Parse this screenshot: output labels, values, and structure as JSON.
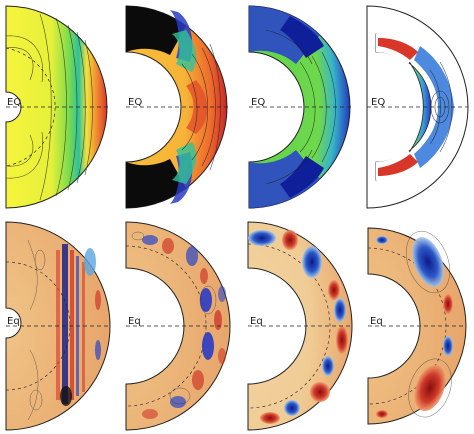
{
  "figure": {
    "rows": [
      {
        "row": "top",
        "panels": [
          {
            "id": "t1",
            "equator_label": "EQ"
          },
          {
            "id": "t2",
            "equator_label": "EQ"
          },
          {
            "id": "t3",
            "equator_label": "EQ"
          },
          {
            "id": "t4",
            "equator_label": "EQ"
          }
        ]
      },
      {
        "row": "bottom",
        "panels": [
          {
            "id": "b1",
            "equator_label": "Eq"
          },
          {
            "id": "b2",
            "equator_label": "Eq"
          },
          {
            "id": "b3",
            "equator_label": "Eq"
          },
          {
            "id": "b4",
            "equator_label": "Eq"
          }
        ]
      }
    ]
  },
  "colors": {
    "frame": "#222222",
    "background": "#ffffff",
    "yellow": "#f5f23a",
    "orange_yellow": "#f8c23a",
    "green": "#63d54a",
    "red": "#d9362a",
    "blue": "#2a3bc4",
    "tan": "#e8a56a",
    "light_tan": "#f2cf95"
  }
}
